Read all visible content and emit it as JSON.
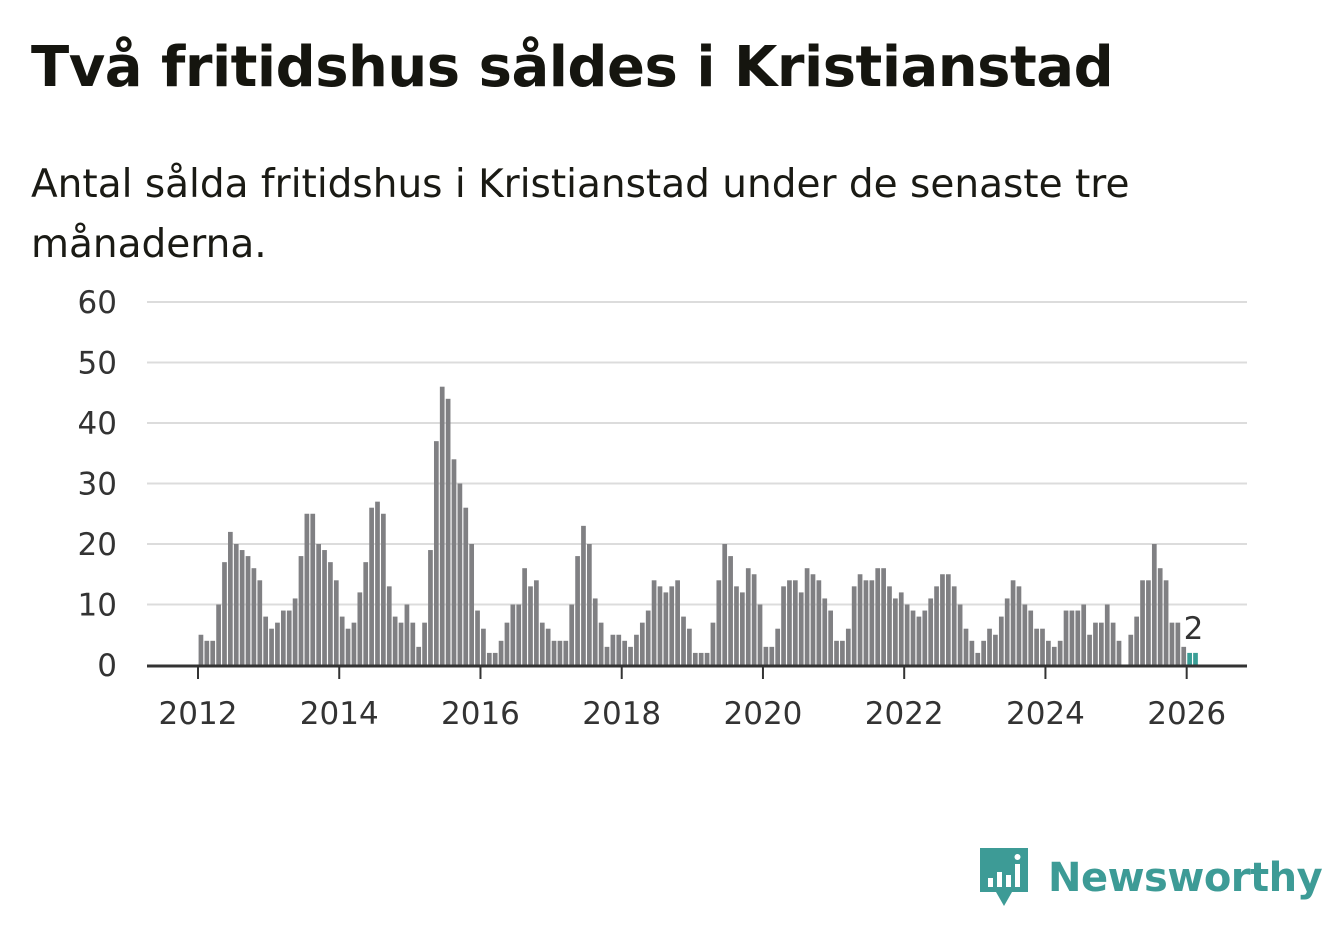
{
  "title": "Två fritidshus såldes i Kristianstad",
  "subtitle": "Antal sålda fritidshus i Kristianstad under de senaste tre månaderna.",
  "brand": {
    "name": "Newsworthy",
    "color": "#3d9b96",
    "icon": "newsworthy-logo-icon"
  },
  "colors": {
    "bar": "#808083",
    "highlight": "#3a9e96",
    "grid": "#dcdcdc",
    "axis": "#333333"
  },
  "chart_data": {
    "type": "bar",
    "title": "Två fritidshus såldes i Kristianstad",
    "subtitle": "Antal sålda fritidshus i Kristianstad under de senaste tre månaderna.",
    "xlabel": "",
    "ylabel": "",
    "ylim": [
      0,
      60
    ],
    "yticks": [
      0,
      10,
      20,
      30,
      40,
      50,
      60
    ],
    "xticks": [
      "2012",
      "2014",
      "2016",
      "2018",
      "2020",
      "2022",
      "2024",
      "2026"
    ],
    "grid": true,
    "start": "2012-01",
    "frequency": "monthly",
    "values": [
      5,
      4,
      4,
      10,
      17,
      22,
      20,
      19,
      18,
      16,
      14,
      8,
      6,
      7,
      9,
      9,
      11,
      18,
      25,
      25,
      20,
      19,
      17,
      14,
      8,
      6,
      7,
      12,
      17,
      26,
      27,
      25,
      13,
      8,
      7,
      10,
      7,
      3,
      7,
      19,
      37,
      46,
      44,
      34,
      30,
      26,
      20,
      9,
      6,
      2,
      2,
      4,
      7,
      10,
      10,
      16,
      13,
      14,
      7,
      6,
      4,
      4,
      4,
      10,
      18,
      23,
      20,
      11,
      7,
      3,
      5,
      5,
      4,
      3,
      5,
      7,
      9,
      14,
      13,
      12,
      13,
      14,
      8,
      6,
      2,
      2,
      2,
      7,
      14,
      20,
      18,
      13,
      12,
      16,
      15,
      10,
      3,
      3,
      6,
      13,
      14,
      14,
      12,
      16,
      15,
      14,
      11,
      9,
      4,
      4,
      6,
      13,
      15,
      14,
      14,
      16,
      16,
      13,
      11,
      12,
      10,
      9,
      8,
      9,
      11,
      13,
      15,
      15,
      13,
      10,
      6,
      4,
      2,
      4,
      6,
      5,
      8,
      11,
      14,
      13,
      10,
      9,
      6,
      6,
      4,
      3,
      4,
      9,
      9,
      9,
      10,
      5,
      7,
      7,
      10,
      7,
      4,
      0,
      5,
      8,
      14,
      14,
      20,
      16,
      14,
      7,
      7,
      3,
      2,
      2
    ],
    "highlight_last": 2,
    "annotation": {
      "label": "2",
      "value": 2
    }
  }
}
